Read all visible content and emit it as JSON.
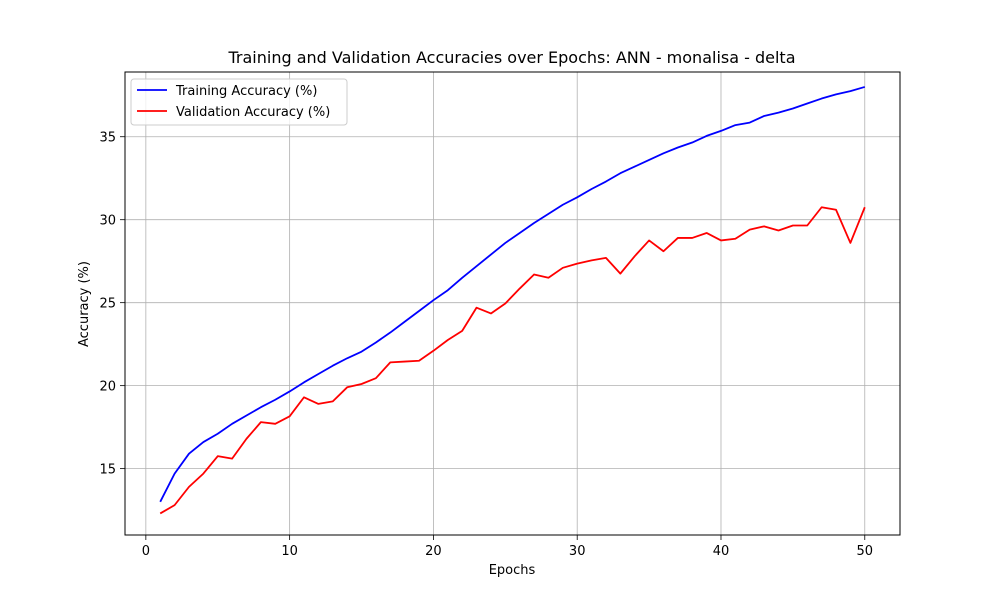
{
  "chart_data": {
    "type": "line",
    "title": "Training and Validation Accuracies over Epochs: ANN - monalisa - delta",
    "xlabel": "Epochs",
    "ylabel": "Accuracy (%)",
    "xlim": [
      -1.45,
      52.45
    ],
    "ylim": [
      11.0,
      38.9
    ],
    "xticks": [
      0,
      10,
      20,
      30,
      40,
      50
    ],
    "yticks": [
      15,
      20,
      25,
      30,
      35
    ],
    "grid": true,
    "legend_position": "upper-left",
    "x": [
      1,
      2,
      3,
      4,
      5,
      6,
      7,
      8,
      9,
      10,
      11,
      12,
      13,
      14,
      15,
      16,
      17,
      18,
      19,
      20,
      21,
      22,
      23,
      24,
      25,
      26,
      27,
      28,
      29,
      30,
      31,
      32,
      33,
      34,
      35,
      36,
      37,
      38,
      39,
      40,
      41,
      42,
      43,
      44,
      45,
      46,
      47,
      48,
      49,
      50
    ],
    "series": [
      {
        "name": "Training Accuracy (%)",
        "color": "#0000ff",
        "values": [
          13.0,
          14.7,
          15.9,
          16.6,
          17.1,
          17.7,
          18.2,
          18.7,
          19.15,
          19.65,
          20.2,
          20.7,
          21.2,
          21.65,
          22.05,
          22.6,
          23.2,
          23.85,
          24.5,
          25.15,
          25.75,
          26.5,
          27.2,
          27.9,
          28.6,
          29.2,
          29.8,
          30.35,
          30.9,
          31.35,
          31.85,
          32.3,
          32.8,
          33.2,
          33.6,
          34.0,
          34.35,
          34.65,
          35.05,
          35.35,
          35.7,
          35.85,
          36.25,
          36.45,
          36.7,
          37.0,
          37.3,
          37.55,
          37.75,
          38.0
        ]
      },
      {
        "name": "Validation Accuracy (%)",
        "color": "#ff0000",
        "values": [
          12.3,
          12.8,
          13.9,
          14.7,
          15.75,
          15.6,
          16.8,
          17.8,
          17.7,
          18.15,
          19.3,
          18.9,
          19.05,
          19.9,
          20.1,
          20.45,
          21.4,
          21.45,
          21.5,
          22.1,
          22.75,
          23.3,
          24.7,
          24.35,
          24.95,
          25.85,
          26.7,
          26.5,
          27.1,
          27.35,
          27.55,
          27.7,
          26.75,
          27.8,
          28.75,
          28.1,
          28.9,
          28.9,
          29.2,
          28.75,
          28.85,
          29.4,
          29.6,
          29.35,
          29.65,
          29.65,
          30.75,
          30.6,
          28.6,
          30.75
        ]
      }
    ]
  }
}
